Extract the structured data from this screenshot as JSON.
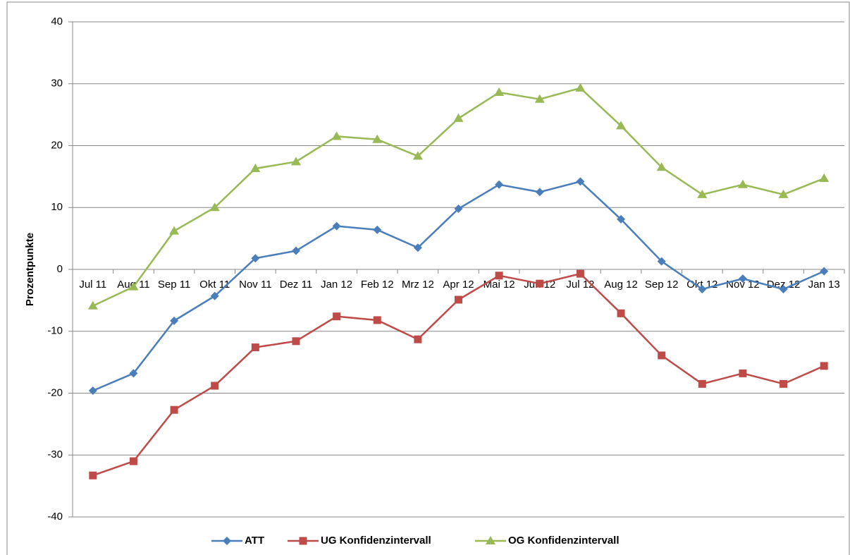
{
  "chart_data": {
    "type": "line",
    "y_label": "Prozentpunkte",
    "categories": [
      "Jul 11",
      "Aug 11",
      "Sep 11",
      "Okt 11",
      "Nov 11",
      "Dez 11",
      "Jan 12",
      "Feb 12",
      "Mrz 12",
      "Apr 12",
      "Mai 12",
      "Jun 12",
      "Jul 12",
      "Aug 12",
      "Sep 12",
      "Okt 12",
      "Nov 12",
      "Dez 12",
      "Jan 13"
    ],
    "series": [
      {
        "name": "ATT",
        "color": "#4a7ebb",
        "marker": "diamond",
        "values": [
          -19.6,
          -16.8,
          -8.3,
          -4.3,
          1.8,
          3.0,
          7.0,
          6.4,
          3.5,
          9.8,
          13.7,
          12.5,
          14.2,
          8.1,
          1.3,
          -3.2,
          -1.5,
          -3.2,
          -0.3
        ]
      },
      {
        "name": "UG Konfidenzintervall",
        "color": "#be4b48",
        "marker": "square",
        "values": [
          -33.3,
          -31.0,
          -22.7,
          -18.8,
          -12.6,
          -11.6,
          -7.6,
          -8.2,
          -11.3,
          -4.9,
          -1.0,
          -2.3,
          -0.7,
          -7.1,
          -13.9,
          -18.5,
          -16.8,
          -18.5,
          -15.6
        ]
      },
      {
        "name": "OG Konfidenzintervall",
        "color": "#98b954",
        "marker": "triangle",
        "values": [
          -5.9,
          -2.8,
          6.2,
          10.0,
          16.3,
          17.4,
          21.5,
          21.0,
          18.3,
          24.4,
          28.6,
          27.5,
          29.3,
          23.2,
          16.5,
          12.1,
          13.7,
          12.1,
          14.7
        ]
      }
    ],
    "ylim": [
      -40,
      40
    ],
    "yticks": [
      -40,
      -30,
      -20,
      -10,
      0,
      10,
      20,
      30,
      40
    ],
    "grid": true,
    "legend": "bottom"
  }
}
